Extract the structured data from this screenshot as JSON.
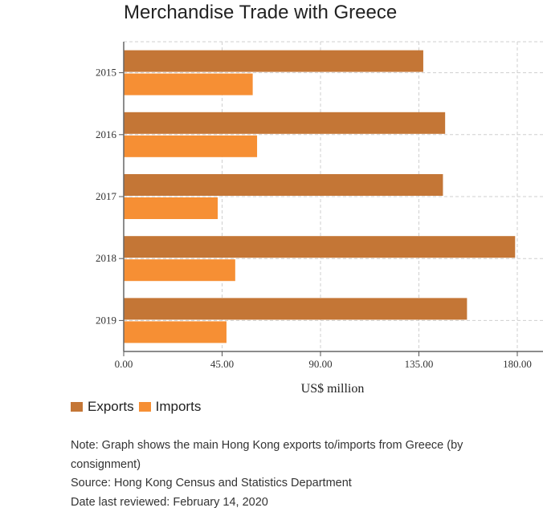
{
  "title": "Merchandise Trade with Greece",
  "chart_data": {
    "type": "bar",
    "orientation": "horizontal",
    "title": "Merchandise Trade with Greece",
    "xlabel": "US$ million",
    "ylabel": "",
    "categories": [
      "2015",
      "2016",
      "2017",
      "2018",
      "2019"
    ],
    "series": [
      {
        "name": "Exports",
        "color": "#c47636",
        "values": [
          137,
          147,
          146,
          179,
          157
        ]
      },
      {
        "name": "Imports",
        "color": "#f68f34",
        "values": [
          59,
          61,
          43,
          51,
          47
        ]
      }
    ],
    "xlim": [
      0,
      180
    ],
    "xticks": [
      "0.00",
      "45.00",
      "90.00",
      "135.00",
      "180.00"
    ],
    "xtick_values": [
      0,
      45,
      90,
      135,
      180
    ],
    "grid": true,
    "legend_position": "bottom-left"
  },
  "legend": {
    "exports_label": "Exports",
    "imports_label": "Imports",
    "exports_color": "#c47636",
    "imports_color": "#f68f34"
  },
  "notes": {
    "note": "Note: Graph shows the main Hong Kong exports to/imports from Greece (by consignment)",
    "source": "Source: Hong Kong Census and Statistics Department",
    "reviewed": "Date last reviewed: February 14, 2020"
  }
}
